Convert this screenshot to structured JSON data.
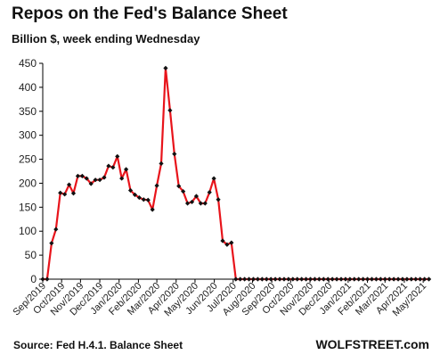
{
  "header": {
    "title": "Repos on the Fed's Balance Sheet",
    "subtitle": "Billion $, week ending Wednesday"
  },
  "footer": {
    "source": "Source: Fed H.4.1. Balance Sheet",
    "brand": "WOLFSTREET.com"
  },
  "colors": {
    "line": "#e8141b",
    "marker": "#111111",
    "axis": "#000000"
  },
  "chart_data": {
    "type": "line",
    "title": "Repos on the Fed's Balance Sheet",
    "subtitle": "Billion $, week ending Wednesday",
    "ylim": [
      0,
      450
    ],
    "yticks": [
      0,
      50,
      100,
      150,
      200,
      250,
      300,
      350,
      400,
      450
    ],
    "grid": false,
    "legend": "none",
    "x_tick_labels": [
      "Sep/2019",
      "Oct/2019",
      "Nov/2019",
      "Dec/2019",
      "Jan/2020",
      "Feb/2020",
      "Mar/2020",
      "Apr/2020",
      "May/2020",
      "Jun/2020",
      "Jul/2020",
      "Aug/2020",
      "Sep/2020",
      "Oct/2020",
      "Nov/2020",
      "Dec/2020",
      "Jan/2021",
      "Feb/2021",
      "Mar/2021",
      "Apr/2021",
      "May/2021"
    ],
    "x_tick_weeks": [
      0,
      4.3,
      8.6,
      13,
      17.4,
      21.8,
      26,
      30.4,
      34.7,
      39.1,
      43.4,
      47.8,
      52.2,
      56.5,
      60.9,
      65.2,
      69.6,
      74,
      78,
      82.4,
      86.7
    ],
    "x_range": [
      0,
      88.5
    ],
    "series": [
      {
        "values": [
          0,
          0,
          75,
          104,
          180,
          177,
          197,
          179,
          215,
          215,
          210,
          199,
          207,
          207,
          212,
          236,
          233,
          256,
          210,
          229,
          185,
          176,
          170,
          166,
          165,
          145,
          195,
          241,
          440,
          352,
          261,
          194,
          183,
          158,
          161,
          173,
          158,
          158,
          181,
          210,
          166,
          80,
          72,
          76,
          0,
          0,
          0,
          0,
          0,
          0,
          0,
          0,
          0,
          0,
          0,
          0,
          0,
          0,
          0,
          0,
          0,
          0,
          0,
          0,
          0,
          0,
          0,
          0,
          0,
          0,
          0,
          0,
          0,
          0,
          0,
          0,
          0,
          0,
          0,
          0,
          0,
          0,
          0,
          0,
          0,
          0,
          0,
          0,
          0
        ]
      }
    ]
  }
}
